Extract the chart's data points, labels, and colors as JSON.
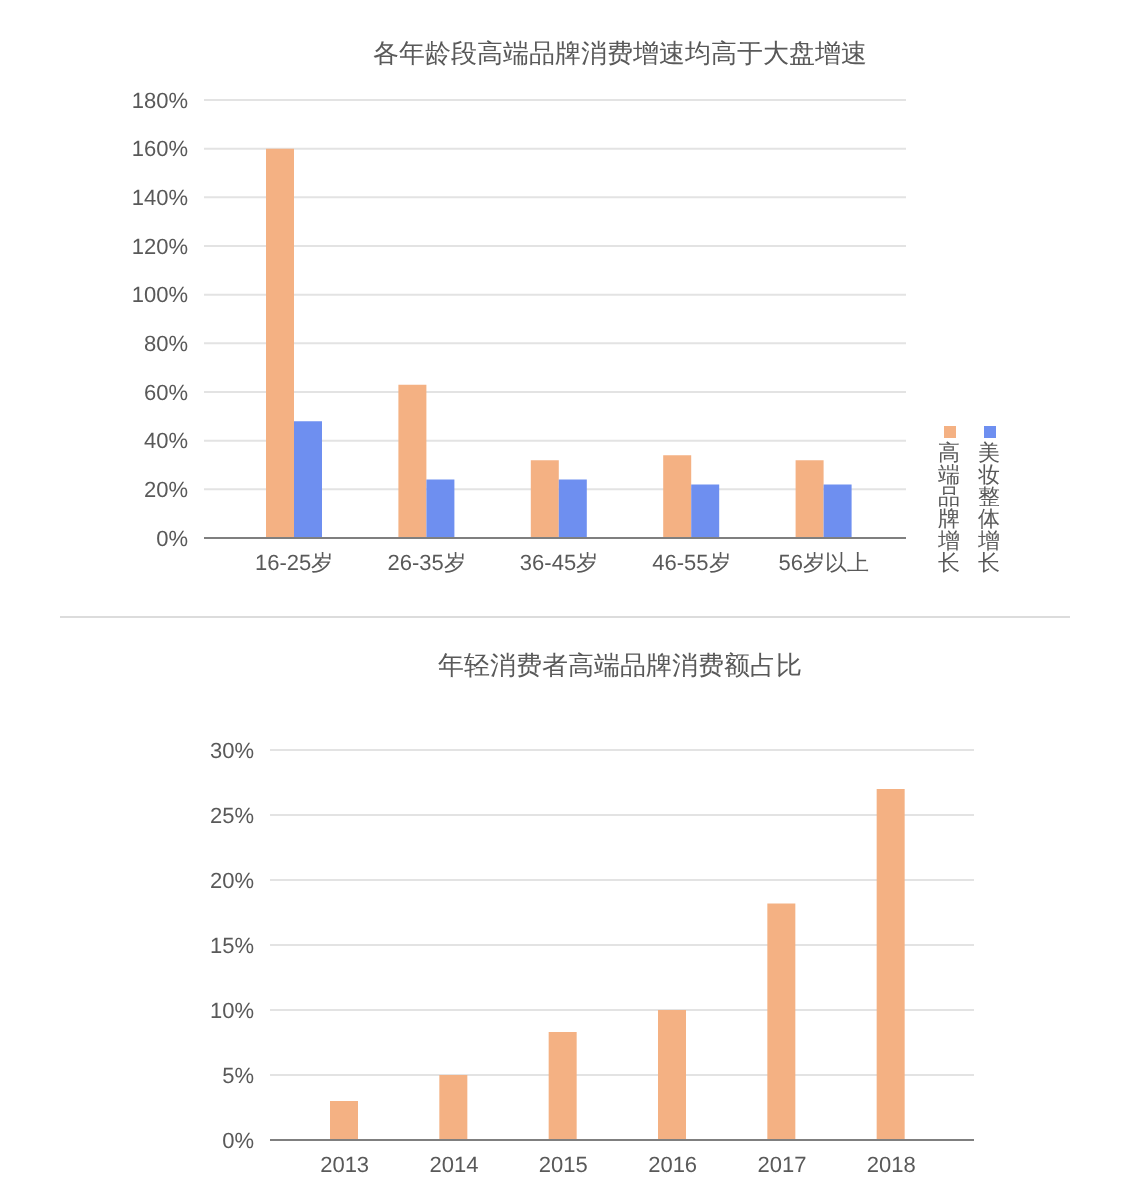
{
  "chart_data": [
    {
      "type": "bar",
      "title": "各年龄段高端品牌消费增速均高于大盘增速",
      "categories": [
        "16-25岁",
        "26-35岁",
        "36-45岁",
        "46-55岁",
        "56岁以上"
      ],
      "series": [
        {
          "name": "高端品牌增长",
          "color": "#f4b183",
          "values": [
            160,
            63,
            32,
            34,
            32
          ]
        },
        {
          "name": "美妆整体增长",
          "color": "#6e8ff0",
          "values": [
            48,
            24,
            24,
            22,
            22
          ]
        }
      ],
      "ylim": [
        0,
        180
      ],
      "yticks": [
        {
          "value": 0,
          "label": "0%"
        },
        {
          "value": 20,
          "label": "20%"
        },
        {
          "value": 40,
          "label": "40%"
        },
        {
          "value": 60,
          "label": "60%"
        },
        {
          "value": 80,
          "label": "80%"
        },
        {
          "value": 100,
          "label": "100%"
        },
        {
          "value": 120,
          "label": "120%"
        },
        {
          "value": 140,
          "label": "140%"
        },
        {
          "value": 160,
          "label": "160%"
        },
        {
          "value": 180,
          "label": "180%"
        }
      ],
      "grid": "y",
      "legend": "right"
    },
    {
      "type": "bar",
      "title": "年轻消费者高端品牌消费额占比",
      "categories": [
        "2013",
        "2014",
        "2015",
        "2016",
        "2017",
        "2018"
      ],
      "values": [
        3,
        5,
        8.3,
        10,
        18.2,
        27
      ],
      "color": "#f4b183",
      "ylim": [
        0,
        30
      ],
      "yticks": [
        {
          "value": 0,
          "label": "0%"
        },
        {
          "value": 5,
          "label": "5%"
        },
        {
          "value": 10,
          "label": "10%"
        },
        {
          "value": 15,
          "label": "15%"
        },
        {
          "value": 20,
          "label": "20%"
        },
        {
          "value": 25,
          "label": "25%"
        },
        {
          "value": 30,
          "label": "30%"
        }
      ],
      "grid": "y"
    }
  ]
}
